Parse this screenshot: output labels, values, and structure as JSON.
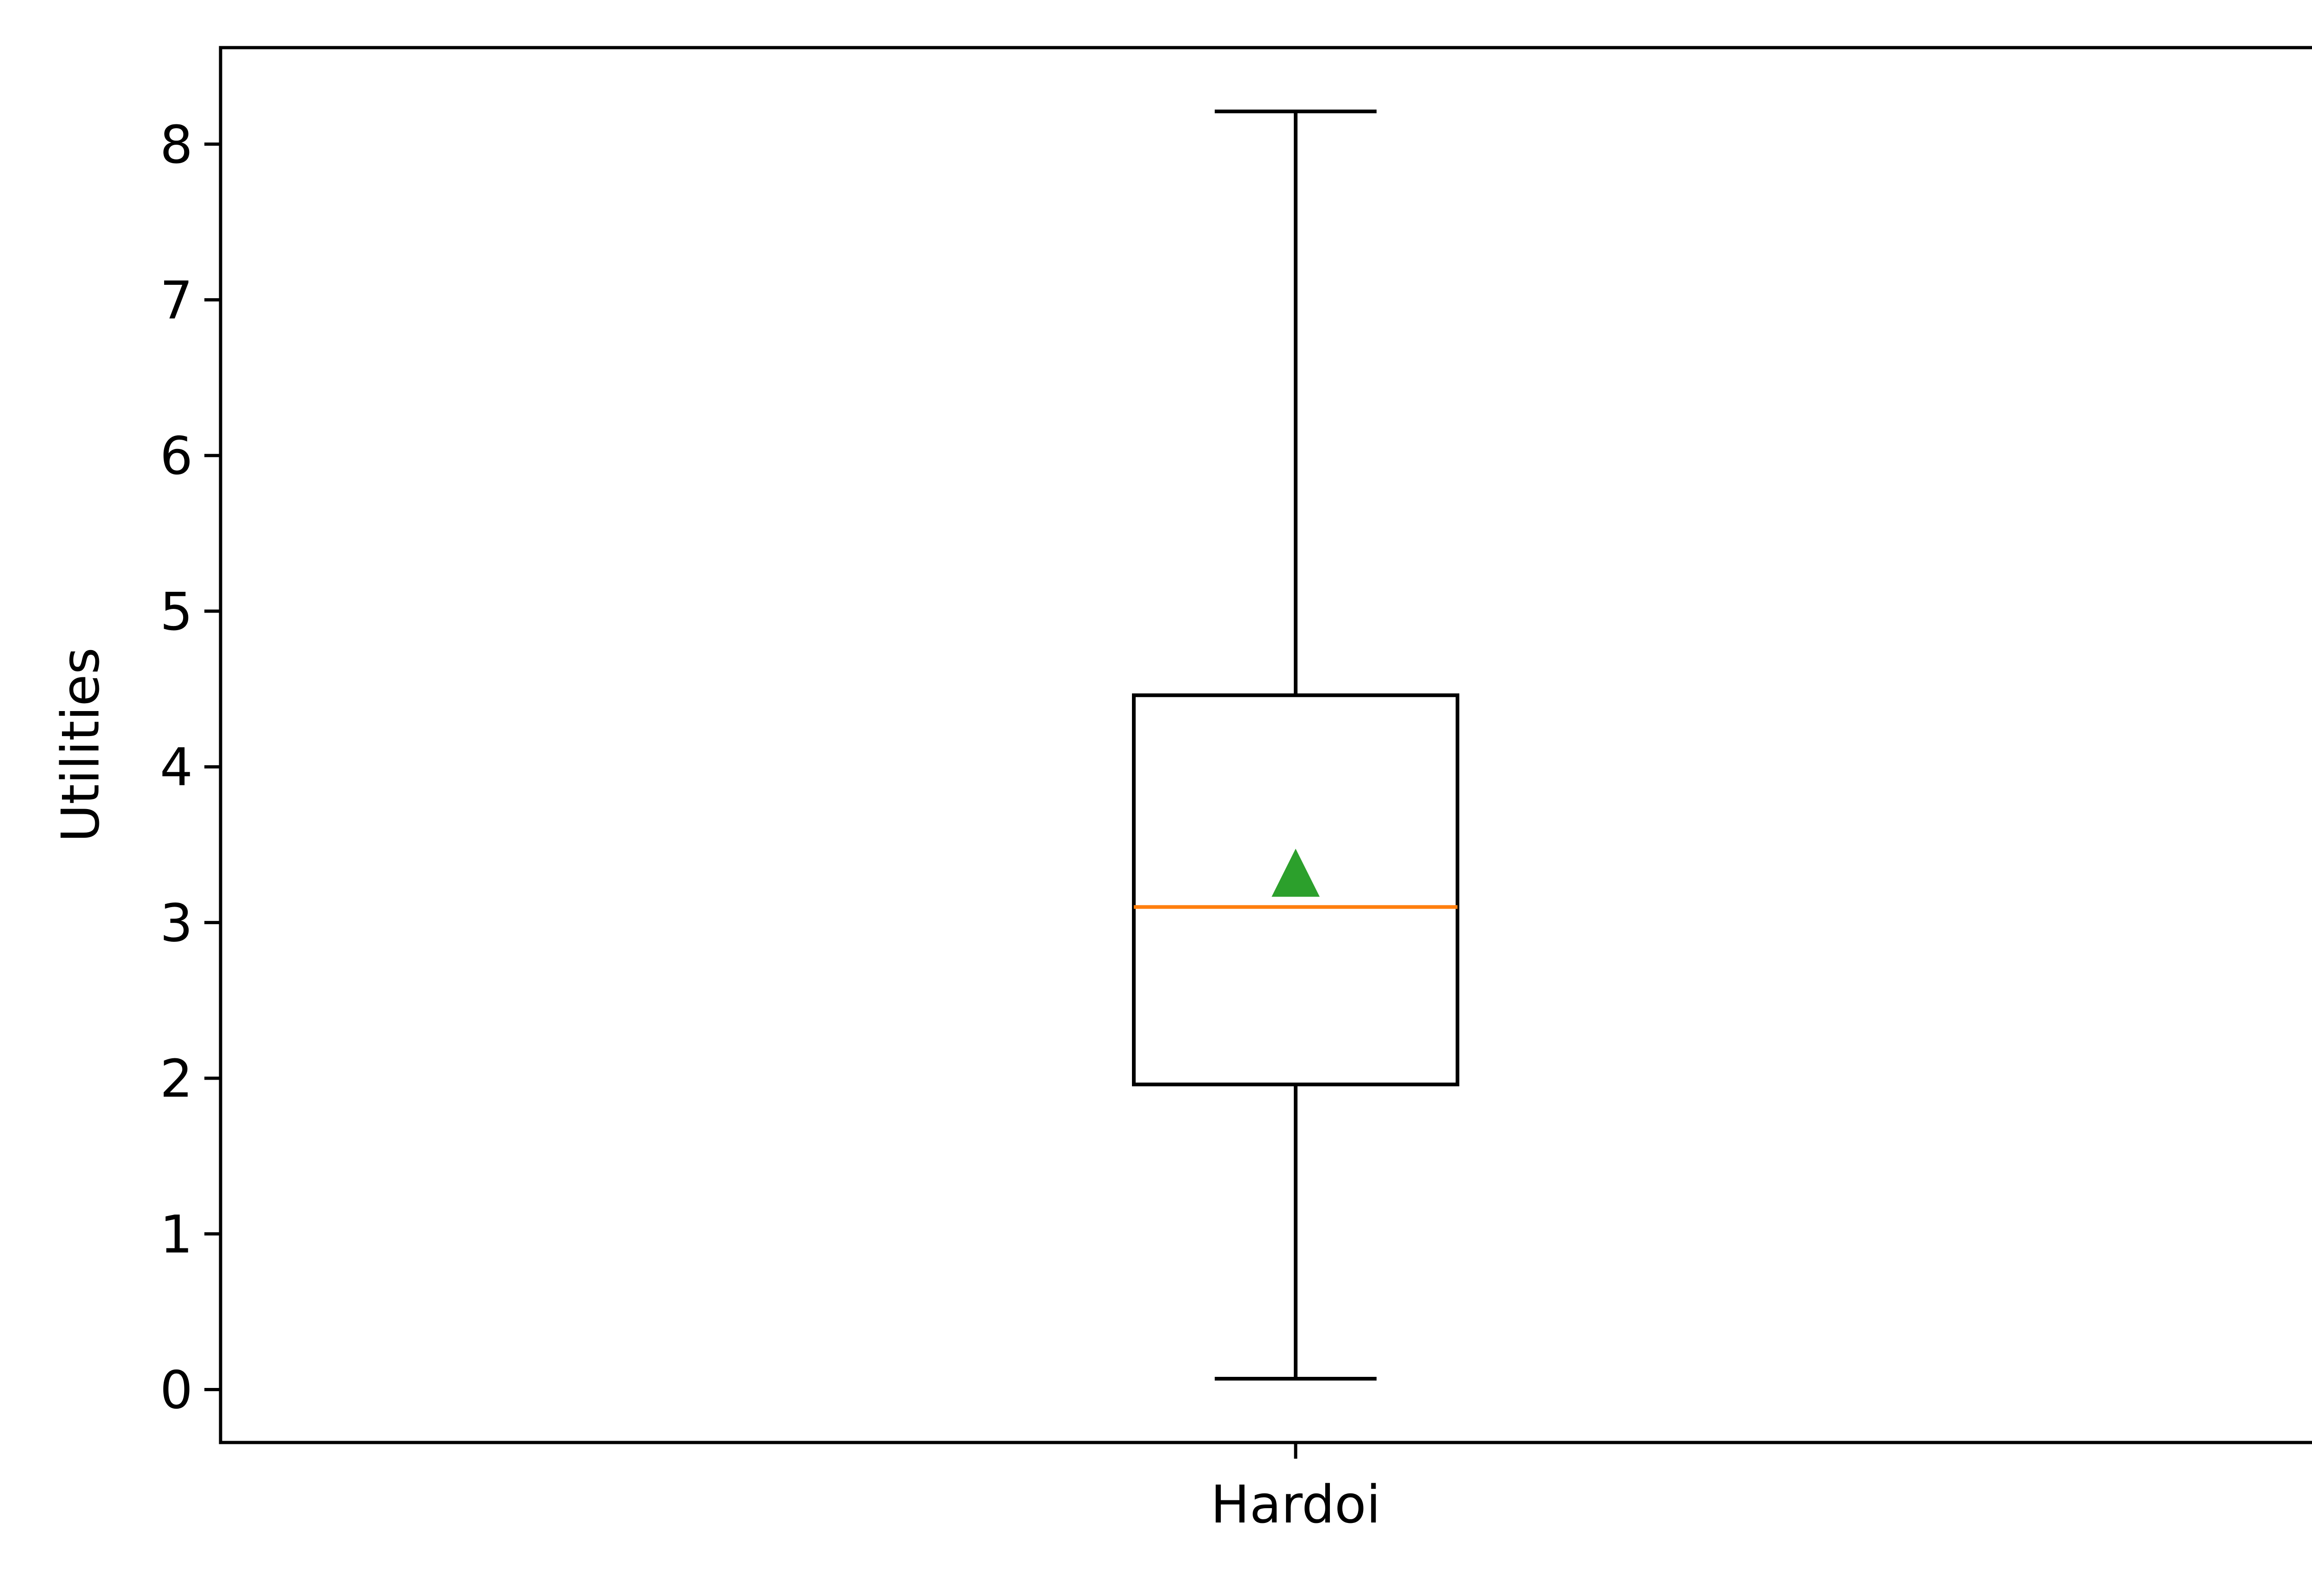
{
  "chart_data": {
    "type": "box",
    "title": "",
    "xlabel": "",
    "ylabel": "Utilities",
    "categories": [
      "Hardoi"
    ],
    "boxes": [
      {
        "category": "Hardoi",
        "whisker_low": 0.07,
        "q1": 1.96,
        "median": 3.1,
        "q3": 4.46,
        "whisker_high": 8.21,
        "mean": 3.32
      }
    ],
    "ylim": [
      -0.34,
      8.62
    ],
    "yticks": [
      0,
      1,
      2,
      3,
      4,
      5,
      6,
      7,
      8
    ],
    "grid": false,
    "legend": "none",
    "colors": {
      "box": "#000000",
      "median": "#ff7f0e",
      "mean_marker": "#2ca02c"
    }
  }
}
